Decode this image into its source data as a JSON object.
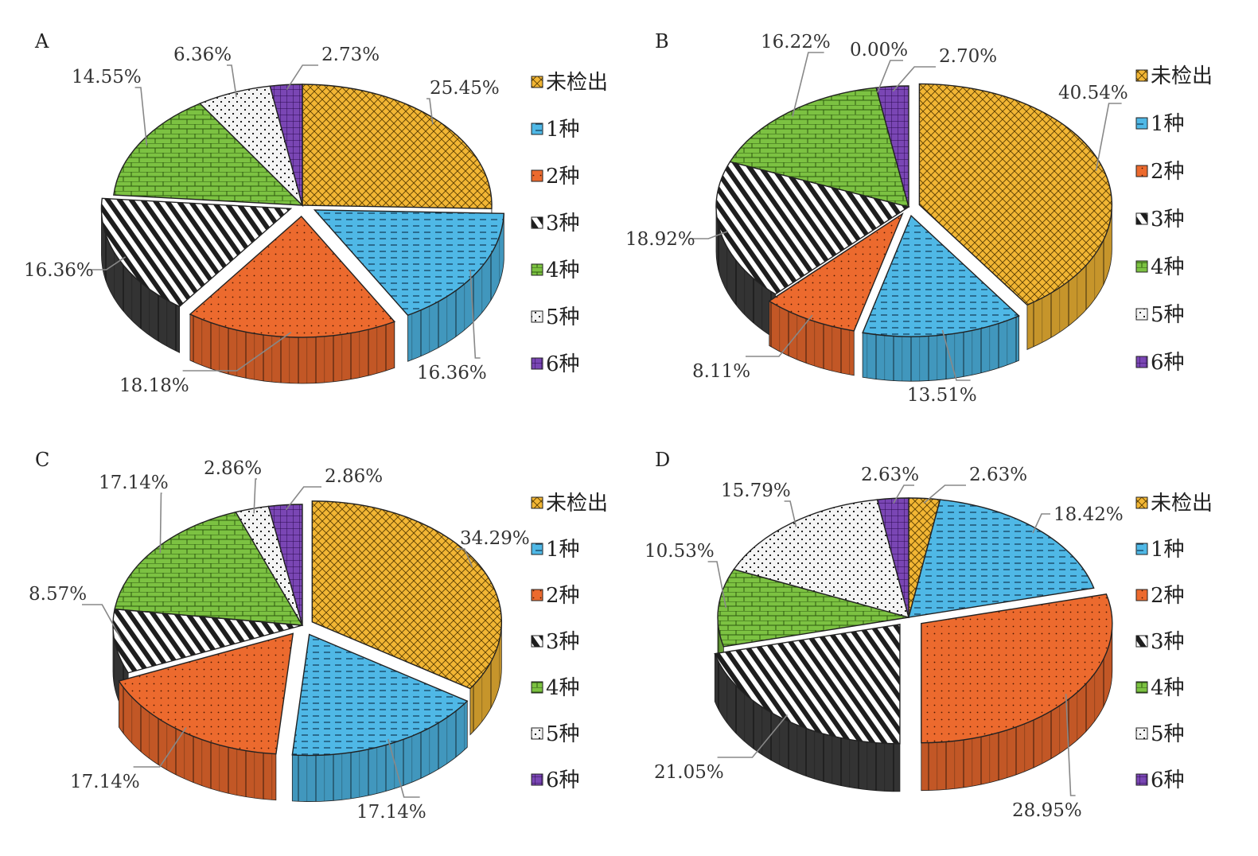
{
  "colors": {
    "未检出": "#F2B634",
    "1种": "#4FB8E6",
    "2种": "#EC6A2E",
    "3种": "#333333",
    "4种": "#7CC242",
    "5种": "#F2F2F2",
    "6种": "#7A46B4"
  },
  "chart_data": [
    {
      "type": "pie",
      "panel": "A",
      "labels": [
        "未检出",
        "1种",
        "2种",
        "3种",
        "4种",
        "5种",
        "6种"
      ],
      "values": [
        25.45,
        16.36,
        18.18,
        16.36,
        14.55,
        6.36,
        2.73
      ],
      "value_labels": [
        "25.45%",
        "16.36%",
        "18.18%",
        "16.36%",
        "14.55%",
        "6.36%",
        "2.73%"
      ],
      "legend": "right"
    },
    {
      "type": "pie",
      "panel": "B",
      "labels": [
        "未检出",
        "1种",
        "2种",
        "3种",
        "4种",
        "5种",
        "6种"
      ],
      "values": [
        40.54,
        13.51,
        8.11,
        18.92,
        16.22,
        0.0,
        2.7
      ],
      "value_labels": [
        "40.54%",
        "13.51%",
        "8.11%",
        "18.92%",
        "16.22%",
        "0.00%",
        "2.70%"
      ],
      "legend": "right"
    },
    {
      "type": "pie",
      "panel": "C",
      "labels": [
        "未检出",
        "1种",
        "2种",
        "3种",
        "4种",
        "5种",
        "6种"
      ],
      "values": [
        34.29,
        17.14,
        17.14,
        8.57,
        17.14,
        2.86,
        2.86
      ],
      "value_labels": [
        "34.29%",
        "17.14%",
        "17.14%",
        "8.57%",
        "17.14%",
        "2.86%",
        "2.86%"
      ],
      "legend": "right"
    },
    {
      "type": "pie",
      "panel": "D",
      "labels": [
        "未检出",
        "1种",
        "2种",
        "3种",
        "4种",
        "5种",
        "6种"
      ],
      "values": [
        2.63,
        18.42,
        28.95,
        21.05,
        10.53,
        15.79,
        2.63
      ],
      "value_labels": [
        "2.63%",
        "18.42%",
        "28.95%",
        "21.05%",
        "10.53%",
        "15.79%",
        "2.63%"
      ],
      "legend": "right"
    }
  ]
}
